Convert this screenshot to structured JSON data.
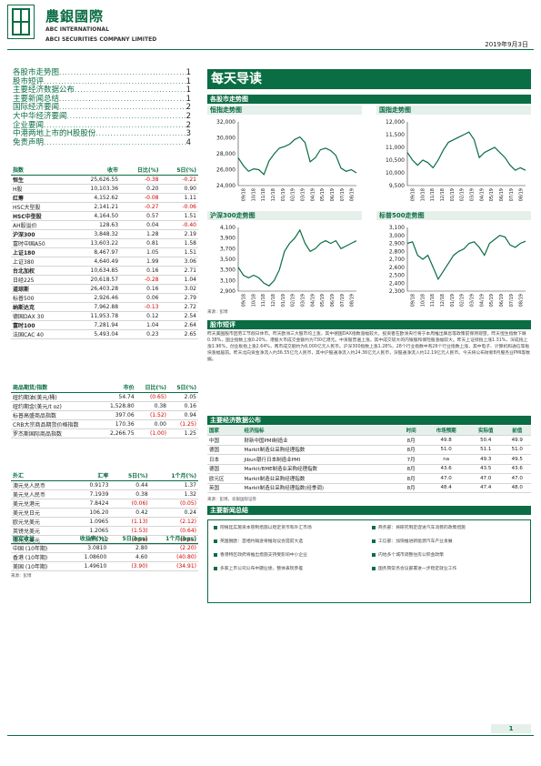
{
  "header": {
    "logo_cn": "農銀國際",
    "logo_en1": "ABC INTERNATIONAL",
    "logo_en2": "ABCI SECURITIES COMPANY LIMITED",
    "date": "2019年9月3日"
  },
  "toc": [
    {
      "title": "各股市走势图",
      "page": "1"
    },
    {
      "title": "股市短评",
      "page": "1"
    },
    {
      "title": "主要经济数据公布",
      "page": "1"
    },
    {
      "title": "主要新闻总结",
      "page": "1"
    },
    {
      "title": "国际经济要闻",
      "page": "2"
    },
    {
      "title": "大中华经济要闻",
      "page": "2"
    },
    {
      "title": "企业要闻",
      "page": "2"
    },
    {
      "title": "中港两地上市的H股股份",
      "page": "3"
    },
    {
      "title": "免责声明",
      "page": "4"
    }
  ],
  "indices": {
    "headers": [
      "指数",
      "收市",
      "日比(%)",
      "5日(%)"
    ],
    "rows": [
      [
        "恒生",
        "25,626.55",
        "-0.38",
        "-0.21"
      ],
      [
        "H股",
        "10,103.36",
        "0.20",
        "0.90"
      ],
      [
        "红筹",
        "4,152.62",
        "-0.08",
        "1.11"
      ],
      [
        "HSC大型股",
        "2,141.21",
        "-0.27",
        "-0.06"
      ],
      [
        "HSC中型股",
        "4,164.50",
        "0.57",
        "1.51"
      ],
      [
        "AH股溢价",
        "128.63",
        "0.04",
        "-0.40"
      ],
      [
        "沪深300",
        "3,848.32",
        "1.28",
        "2.19"
      ],
      [
        "富时中国A50",
        "13,603.22",
        "0.81",
        "1.58"
      ],
      [
        "上证180",
        "8,467.97",
        "1.05",
        "1.51"
      ],
      [
        "上证380",
        "4,640.49",
        "1.99",
        "3.06"
      ],
      [
        "台北加权",
        "10,634.85",
        "0.16",
        "2.71"
      ],
      [
        "日经225",
        "20,618.57",
        "-0.28",
        "1.04"
      ],
      [
        "道琼斯",
        "26,403.28",
        "0.16",
        "3.02"
      ],
      [
        "标普500",
        "2,926.46",
        "0.06",
        "2.79"
      ],
      [
        "纳斯达克",
        "7,962.88",
        "-0.13",
        "2.72"
      ],
      [
        "德国DAX 30",
        "11,953.78",
        "0.12",
        "2.54"
      ],
      [
        "富时100",
        "7,281.94",
        "1.04",
        "2.64"
      ],
      [
        "法国CAC 40",
        "5,493.04",
        "0.23",
        "2.65"
      ]
    ]
  },
  "commodities": {
    "headers": [
      "商品期货/指数",
      "市价",
      "日比(%)",
      "5日(%)"
    ],
    "rows": [
      [
        "纽约期油(美元/桶)",
        "54.74",
        "(0.65)",
        "2.05"
      ],
      [
        "纽约期金(美元/t oz)",
        "1,528.80",
        "0.38",
        "0.16"
      ],
      [
        "标普高盛商品指数",
        "397.06",
        "(1.52)",
        "0.94"
      ],
      [
        "CRB大宗商品期货价格指数",
        "170.36",
        "0.00",
        "(1.25)"
      ],
      [
        "罗杰斯国际商品指数",
        "2,266.75",
        "(1.00)",
        "1.25"
      ]
    ]
  },
  "fx": {
    "headers": [
      "外汇",
      "汇率",
      "5日(%)",
      "1个月(%)"
    ],
    "rows": [
      [
        "澳元兑人民币",
        "0.9173",
        "0.44",
        "1.37"
      ],
      [
        "美元兑人民币",
        "7.1939",
        "0.38",
        "1.32"
      ],
      [
        "美元兑港元",
        "7.8424",
        "(0.06)",
        "(0.05)"
      ],
      [
        "美元兑日元",
        "106.20",
        "0.42",
        "0.24"
      ],
      [
        "欧元兑美元",
        "1.0965",
        "(1.13)",
        "(2.12)"
      ],
      [
        "英镑兑美元",
        "1.2065",
        "(1.53)",
        "(0.64)"
      ],
      [
        "澳元兑美元",
        "0.6712",
        "(0.59)",
        "(0.65)"
      ]
    ]
  },
  "bonds": {
    "headers": [
      "固定收益",
      "收益率(%)",
      "5日(bps)",
      "1个月(bps)"
    ],
    "rows": [
      [
        "中国 (10年期)",
        "3.0810",
        "2.80",
        "(2.20)"
      ],
      [
        "香港 (10年期)",
        "1.08600",
        "4.60",
        "(40.80)"
      ],
      [
        "美国 (10年期)",
        "1.49610",
        "(3.90)",
        "(34.91)"
      ]
    ],
    "source": "来源：彭博"
  },
  "main": {
    "title": "每天导读",
    "charts_section": "各股市走势图",
    "chart_source": "来源：彭博",
    "market_section": "股市短评",
    "market_text": "昨天美国股市因劳工节假日休市。昨天欧洲三大股市均上涨，其中德国DAX指数涨幅较大，投资者在欧洲央行将于本周推出降息等政策前保持观望。昨天恒生指数下跌0.38%，国企指数上涨0.20%，港股大市成交金额约为730亿港元。中资股普遍上涨，其中成交较大的内银股和保险股涨幅较大。昨天上证综指上涨1.31%，深成指上涨1.96%，创业板指上涨2.64%，两市成交额约为6,000亿元人民币。沪深300指数上涨1.28%，28个行业指数中有26个行业指数上涨，其中电子、计算机和通信等板块涨幅居前。昨天北向资金净流入约36.55亿元人民币，其中沪股通净流入约24.36亿元人民币，深股通净流入约12.19亿元人民币。今天将公布财新8月服务业PMI等数据。",
    "econ_section": "主要经济数据公布",
    "econ_headers": [
      "国家",
      "经济指标",
      "时间",
      "市场预期",
      "实际值",
      "前值"
    ],
    "econ_rows": [
      [
        "中国",
        "财新中国PMI制造业",
        "8月",
        "49.8",
        "50.4",
        "49.9"
      ],
      [
        "德国",
        "Markit制造业采购经理指数",
        "8月",
        "51.0",
        "51.1",
        "51.0"
      ],
      [
        "日本",
        "Jibun银行日本制造业PMI",
        "7月",
        "na",
        "49.3",
        "49.5"
      ],
      [
        "德国",
        "Markit/BME制造业采购经理指数",
        "8月",
        "43.6",
        "43.5",
        "43.6"
      ],
      [
        "欧元区",
        "Markit制造业采购经理指数",
        "8月",
        "47.0",
        "47.0",
        "47.0"
      ],
      [
        "英国",
        "Markit制造业采购经理指数(经季调)",
        "8月",
        "48.4",
        "47.4",
        "48.0"
      ]
    ],
    "econ_source": "来源：彭博，农银国际证券",
    "news_section": "主要新闻总结",
    "news": [
      "阿根廷实施资本管制措施以稳定货币和外汇市场",
      "商务部：将研究制定促进汽车消费的政策措施",
      "英国脱欧：首相约翰逊将推动议会提前大选",
      "工信部：加快推进新能源汽车产业发展",
      "香港特区政府将推出措施支持受影响中小企业",
      "内地多个城市调整住房公积金政策",
      "多家上市公司公布中期业绩，整体表现参差",
      "国务院常务会议部署进一步稳定就业工作"
    ]
  },
  "charts": [
    {
      "title": "恒指走势图",
      "type": "line",
      "yticks": [
        "32,000",
        "30,000",
        "28,000",
        "26,000",
        "24,000"
      ],
      "ylim": [
        24000,
        32000
      ],
      "xticks": [
        "09/18",
        "10/18",
        "11/18",
        "12/18",
        "01/19",
        "02/19",
        "03/19",
        "04/19",
        "05/19",
        "06/19",
        "07/19",
        "08/19"
      ],
      "values": [
        27500,
        26500,
        25800,
        26100,
        26000,
        25400,
        27100,
        28000,
        28700,
        28900,
        29200,
        29800,
        30100,
        29400,
        27000,
        27500,
        28500,
        28700,
        28400,
        27800,
        26200,
        25800,
        26000,
        25600
      ]
    },
    {
      "title": "国指走势图",
      "type": "line",
      "yticks": [
        "12,000",
        "11,500",
        "11,000",
        "10,500",
        "10,000",
        "9,500"
      ],
      "ylim": [
        9500,
        12000
      ],
      "xticks": [
        "09/18",
        "10/18",
        "11/18",
        "12/18",
        "01/19",
        "02/19",
        "03/19",
        "04/19",
        "05/19",
        "06/19",
        "07/19",
        "08/19"
      ],
      "values": [
        10800,
        10500,
        10300,
        10500,
        10400,
        10200,
        10500,
        10900,
        11200,
        11300,
        11400,
        11500,
        11600,
        11300,
        10600,
        10800,
        10900,
        11000,
        10800,
        10600,
        10300,
        10100,
        10200,
        10100
      ]
    },
    {
      "title": "沪深300走势图",
      "type": "line",
      "yticks": [
        "4,100",
        "3,900",
        "3,700",
        "3,500",
        "3,300",
        "3,100",
        "2,900"
      ],
      "ylim": [
        2900,
        4100
      ],
      "xticks": [
        "09/18",
        "10/18",
        "11/18",
        "12/18",
        "01/19",
        "02/19",
        "03/19",
        "04/19",
        "05/19",
        "06/19",
        "07/19",
        "08/19"
      ],
      "values": [
        3350,
        3200,
        3150,
        3200,
        3150,
        3050,
        3000,
        3100,
        3300,
        3650,
        3800,
        3900,
        4050,
        3800,
        3650,
        3700,
        3800,
        3850,
        3800,
        3850,
        3700,
        3750,
        3800,
        3848
      ]
    },
    {
      "title": "标普500走势图",
      "type": "line",
      "yticks": [
        "3,100",
        "3,000",
        "2,900",
        "2,800",
        "2,700",
        "2,600",
        "2,500",
        "2,400",
        "2,300"
      ],
      "ylim": [
        2300,
        3100
      ],
      "xticks": [
        "09/18",
        "10/18",
        "11/18",
        "12/18",
        "01/19",
        "02/19",
        "03/19",
        "04/19",
        "05/19",
        "06/19",
        "07/19",
        "08/19"
      ],
      "values": [
        2900,
        2920,
        2750,
        2700,
        2750,
        2600,
        2450,
        2550,
        2650,
        2750,
        2800,
        2830,
        2900,
        2920,
        2850,
        2750,
        2900,
        2950,
        3000,
        2980,
        2880,
        2850,
        2900,
        2926
      ]
    }
  ],
  "footer": {
    "page": "1"
  },
  "colors": {
    "brand": "#0a6d43",
    "negative": "#d40000"
  }
}
